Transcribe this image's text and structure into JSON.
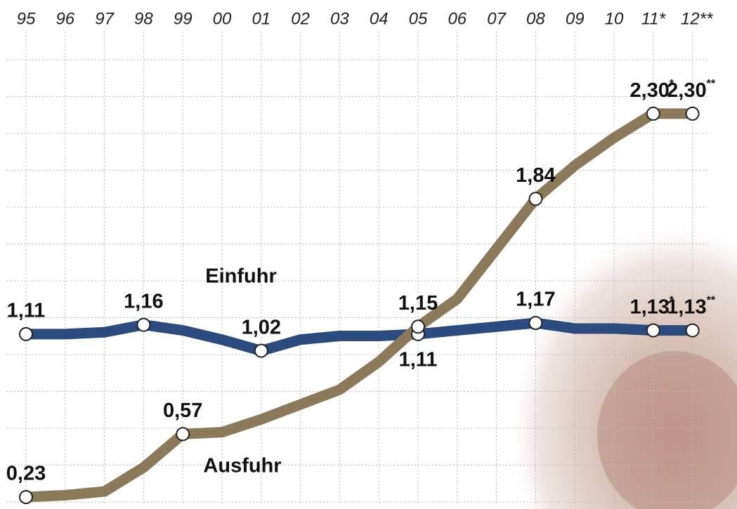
{
  "chart_data": {
    "type": "line",
    "categories": [
      "95",
      "96",
      "97",
      "98",
      "99",
      "00",
      "01",
      "02",
      "03",
      "04",
      "05",
      "06",
      "07",
      "08",
      "09",
      "10",
      "11*",
      "12**"
    ],
    "series": [
      {
        "name": "Einfuhr",
        "color": "#2b4a7d",
        "values": [
          1.11,
          1.11,
          1.12,
          1.16,
          1.13,
          1.08,
          1.02,
          1.08,
          1.1,
          1.1,
          1.11,
          1.13,
          1.15,
          1.17,
          1.14,
          1.14,
          1.13,
          1.13
        ],
        "value_labels": [
          "1,11",
          null,
          null,
          "1,16",
          null,
          null,
          "1,02",
          null,
          null,
          null,
          "1,11",
          null,
          null,
          "1,17",
          null,
          null,
          "1,13*",
          "1,13**"
        ]
      },
      {
        "name": "Ausfuhr",
        "color": "#8a7a5a",
        "values": [
          0.23,
          0.24,
          0.26,
          0.39,
          0.57,
          0.58,
          0.65,
          0.73,
          0.81,
          0.96,
          1.15,
          1.3,
          1.57,
          1.84,
          2.02,
          2.17,
          2.3,
          2.3
        ],
        "value_labels": [
          "0,23",
          null,
          null,
          null,
          "0,57",
          null,
          null,
          null,
          null,
          null,
          "1,15",
          null,
          null,
          "1,84",
          null,
          null,
          "2,30*",
          "2,30**"
        ]
      }
    ]
  }
}
